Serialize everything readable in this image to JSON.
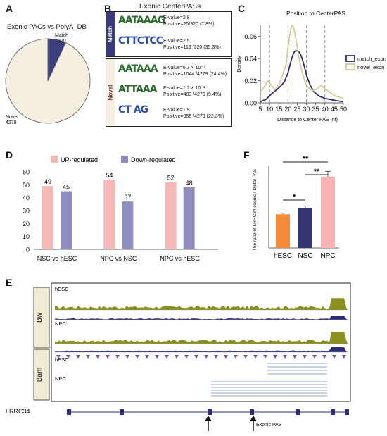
{
  "panelA": {
    "letter": "A",
    "title": "Exonic PACs vs PolyA_DB",
    "slices": [
      {
        "name": "Match",
        "value": 320,
        "color": "#3b3f7d"
      },
      {
        "name": "Novel",
        "value": 4279,
        "color": "#f6efdf"
      }
    ],
    "match_label": "Match",
    "match_value": "320",
    "novel_label": "Novel",
    "novel_value": "4279"
  },
  "panelB": {
    "letter": "B",
    "title": "Exonic CenterPASs",
    "match_tag": "Match",
    "novel_tag": "Novel",
    "motifs": [
      {
        "logo": "AATAAAG",
        "evalue": "E-value=2.8",
        "positive": "Positive=25/320  (7.8%)"
      },
      {
        "logo": "CTTCTCC",
        "evalue": "E-value=2.5",
        "positive": "Positive=113 /320  (35.3%)"
      },
      {
        "logo": "AATAAA",
        "evalue": "E-value=6.3 × 10⁻⁷",
        "positive": "Positive=1044 /4279  (24.4%)"
      },
      {
        "logo": "ATTAAA",
        "evalue": "E-value=1.2 × 10⁻¹",
        "positive": "Positive=403 /4279  (9.4%)"
      },
      {
        "logo": "CT  AG",
        "evalue": "E-value=1.9",
        "positive": "Positive=955 /4279  (22.3%)"
      }
    ]
  },
  "panelC": {
    "letter": "C",
    "chart_data": {
      "type": "line",
      "title": "Position to CenterPAS",
      "xlabel": "Distance to Center  PAS (nt)",
      "ylabel": "Density",
      "xlim": [
        5,
        50
      ],
      "ylim": [
        0,
        0.07
      ],
      "xticks": [
        "5",
        "10",
        "15",
        "20",
        "25",
        "30",
        "35",
        "40",
        "45",
        "50"
      ],
      "yticks": [
        "0.00",
        "0.02",
        "0.04",
        "0.06"
      ],
      "dashed_lines_x": [
        10,
        20,
        30,
        40
      ],
      "series": [
        {
          "name": "match_exon",
          "color": "#2e2a6e",
          "x": [
            5,
            8,
            11,
            14,
            16,
            18,
            20,
            21,
            22,
            23,
            24,
            25,
            26,
            27,
            28,
            29,
            30,
            32,
            34,
            37,
            40,
            43,
            46,
            50
          ],
          "y": [
            0.001,
            0.003,
            0.008,
            0.012,
            0.015,
            0.019,
            0.027,
            0.034,
            0.04,
            0.045,
            0.047,
            0.047,
            0.046,
            0.043,
            0.038,
            0.032,
            0.025,
            0.016,
            0.01,
            0.006,
            0.004,
            0.003,
            0.002,
            0.001
          ]
        },
        {
          "name": "novel_exon",
          "color": "#d8c998",
          "x": [
            5,
            7,
            9,
            11,
            13,
            15,
            17,
            19,
            20,
            21,
            22,
            23,
            24,
            25,
            26,
            27,
            28,
            29,
            30,
            32,
            34,
            36,
            38,
            40,
            43,
            46,
            50
          ],
          "y": [
            0.01,
            0.014,
            0.02,
            0.016,
            0.012,
            0.016,
            0.025,
            0.035,
            0.05,
            0.062,
            0.07,
            0.068,
            0.06,
            0.05,
            0.04,
            0.032,
            0.026,
            0.02,
            0.016,
            0.012,
            0.011,
            0.013,
            0.016,
            0.013,
            0.009,
            0.006,
            0.004
          ]
        }
      ],
      "legend_position": "right"
    }
  },
  "panelD": {
    "letter": "D",
    "chart_data": {
      "type": "bar",
      "categories": [
        "NSC  vs  hESC",
        "NPC  vs  NSC",
        "NPC  vs  hESC"
      ],
      "series": [
        {
          "name": "UP-regulated",
          "color": "#f4b8b6",
          "values": [
            49,
            54,
            52
          ]
        },
        {
          "name": "Down-regulated",
          "color": "#8f8cc0",
          "values": [
            45,
            37,
            48
          ]
        }
      ],
      "ylim": [
        0,
        60
      ],
      "yticks": [
        "0",
        "10",
        "20",
        "30",
        "40",
        "50",
        "60"
      ],
      "legend_position": "top"
    }
  },
  "panelF": {
    "letter": "F",
    "chart_data": {
      "type": "bar",
      "categories": [
        "hESC",
        "NSC",
        "NPC"
      ],
      "values": [
        1.0,
        1.18,
        2.12
      ],
      "errors": [
        0.04,
        0.07,
        0.16
      ],
      "colors": [
        "#f28a36",
        "#33366f",
        "#f7b2b2"
      ],
      "ylabel": "The ratio of LRRC34 exonic / Distal PAS",
      "ylim": [
        0,
        2.6
      ],
      "significance": [
        {
          "from": "hESC",
          "to": "NPC",
          "label": "**"
        },
        {
          "from": "NSC",
          "to": "NPC",
          "label": "**"
        },
        {
          "from": "hESC",
          "to": "NSC",
          "label": "*"
        }
      ]
    }
  },
  "panelE": {
    "letter": "E",
    "group_bw": "Bw",
    "group_bam": "Bam",
    "track_hesc": "hESC",
    "track_npc": "NPC",
    "bam_hesc": "hESC",
    "bam_npc": "NPC",
    "gene": "LRRC34",
    "annotation": "Exonic PAS",
    "colors": {
      "olive": "#8a8f1f",
      "navy": "#2b2c7a",
      "purple": "#7b4ea3"
    }
  }
}
